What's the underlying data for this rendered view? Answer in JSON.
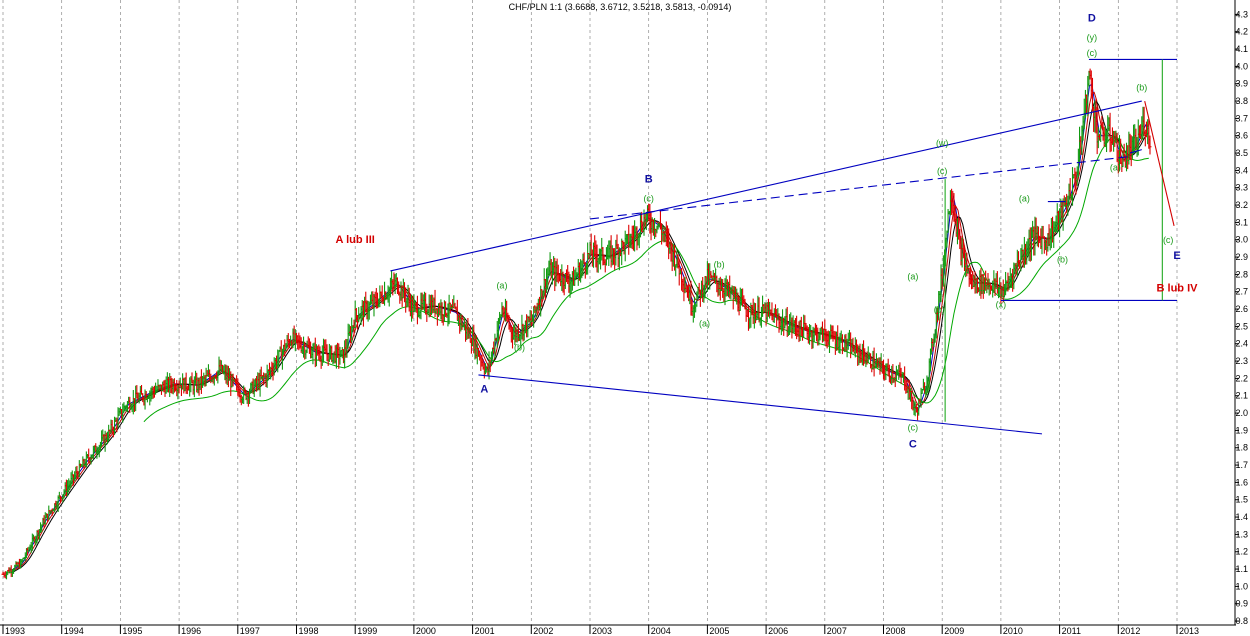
{
  "title": "CHF/PLN 1:1 (3.6688, 3.6712, 3.5218, 3.5813, -0.0914)",
  "chart_data": {
    "type": "ohlc-weekly",
    "instrument": "CHF/PLN",
    "title": "CHF/PLN 1:1 (3.6688, 3.6712, 3.5218, 3.5813, -0.0914)",
    "last_bar": {
      "open": 3.6688,
      "high": 3.6712,
      "low": 3.5218,
      "close": 3.5813,
      "change": -0.0914
    },
    "x_ticks": [
      "1993",
      "1994",
      "1995",
      "1996",
      "1997",
      "1998",
      "1999",
      "2000",
      "2001",
      "2002",
      "2003",
      "2004",
      "2005",
      "2006",
      "2007",
      "2008",
      "2009",
      "2010",
      "2011",
      "2012",
      "2013"
    ],
    "y_ticks": [
      "0.8",
      "0.9",
      "1.0",
      "1.1",
      "1.2",
      "1.3",
      "1.4",
      "1.5",
      "1.6",
      "1.7",
      "1.8",
      "1.9",
      "2.0",
      "2.1",
      "2.2",
      "2.3",
      "2.4",
      "2.5",
      "2.6",
      "2.7",
      "2.8",
      "2.9",
      "3.0",
      "3.1",
      "3.2",
      "3.3",
      "3.4",
      "3.5",
      "3.6",
      "3.7",
      "3.8",
      "3.9",
      "4.0",
      "4.1",
      "4.2",
      "4.3"
    ],
    "xlim": [
      1993.0,
      2013.3
    ],
    "ylim": [
      0.76,
      4.36
    ],
    "price_path": [
      [
        1993.0,
        1.07
      ],
      [
        1993.3,
        1.13
      ],
      [
        1993.7,
        1.38
      ],
      [
        1994.0,
        1.53
      ],
      [
        1994.4,
        1.72
      ],
      [
        1994.8,
        1.88
      ],
      [
        1995.1,
        2.05
      ],
      [
        1995.5,
        2.12
      ],
      [
        1995.9,
        2.17
      ],
      [
        1996.3,
        2.16
      ],
      [
        1996.7,
        2.25
      ],
      [
        1997.1,
        2.1
      ],
      [
        1997.5,
        2.22
      ],
      [
        1997.9,
        2.43
      ],
      [
        1998.3,
        2.35
      ],
      [
        1998.8,
        2.33
      ],
      [
        1999.0,
        2.56
      ],
      [
        1999.3,
        2.63
      ],
      [
        1999.7,
        2.75
      ],
      [
        2000.0,
        2.6
      ],
      [
        2000.3,
        2.62
      ],
      [
        2000.7,
        2.58
      ],
      [
        2001.0,
        2.42
      ],
      [
        2001.25,
        2.23
      ],
      [
        2001.5,
        2.6
      ],
      [
        2001.7,
        2.45
      ],
      [
        2002.0,
        2.53
      ],
      [
        2002.3,
        2.82
      ],
      [
        2002.7,
        2.76
      ],
      [
        2003.0,
        2.92
      ],
      [
        2003.3,
        2.9
      ],
      [
        2003.7,
        3.0
      ],
      [
        2003.95,
        3.13
      ],
      [
        2004.2,
        3.07
      ],
      [
        2004.5,
        2.85
      ],
      [
        2004.75,
        2.62
      ],
      [
        2005.0,
        2.78
      ],
      [
        2005.3,
        2.72
      ],
      [
        2005.7,
        2.58
      ],
      [
        2006.0,
        2.58
      ],
      [
        2006.3,
        2.52
      ],
      [
        2006.7,
        2.47
      ],
      [
        2007.0,
        2.45
      ],
      [
        2007.3,
        2.41
      ],
      [
        2007.7,
        2.32
      ],
      [
        2008.0,
        2.25
      ],
      [
        2008.35,
        2.2
      ],
      [
        2008.55,
        2.0
      ],
      [
        2008.75,
        2.2
      ],
      [
        2009.0,
        2.8
      ],
      [
        2009.15,
        3.3
      ],
      [
        2009.3,
        2.95
      ],
      [
        2009.5,
        2.75
      ],
      [
        2009.8,
        2.75
      ],
      [
        2010.05,
        2.7
      ],
      [
        2010.3,
        2.88
      ],
      [
        2010.55,
        3.02
      ],
      [
        2010.8,
        3.0
      ],
      [
        2011.1,
        3.2
      ],
      [
        2011.3,
        3.4
      ],
      [
        2011.5,
        3.95
      ],
      [
        2011.65,
        3.6
      ],
      [
        2011.9,
        3.6
      ],
      [
        2012.05,
        3.45
      ],
      [
        2012.3,
        3.55
      ],
      [
        2012.45,
        3.68
      ],
      [
        2012.55,
        3.58
      ]
    ],
    "moving_averages": [
      {
        "color": "#0000c0",
        "lag": 0.06
      },
      {
        "color": "#c00000",
        "lag": 0.14
      },
      {
        "color": "#000000",
        "lag": 0.22
      },
      {
        "color": "#00a800",
        "lag": 0.55
      }
    ],
    "trendlines": [
      {
        "color": "#0000c0",
        "style": "solid",
        "points": [
          [
            1999.6,
            2.82
          ],
          [
            2012.4,
            3.8
          ]
        ]
      },
      {
        "color": "#0000c0",
        "style": "dashed",
        "points": [
          [
            2003.0,
            3.12
          ],
          [
            2012.2,
            3.48
          ]
        ]
      },
      {
        "color": "#0000c0",
        "style": "solid",
        "points": [
          [
            2001.1,
            2.22
          ],
          [
            2010.7,
            1.88
          ]
        ]
      },
      {
        "color": "#0000c0",
        "style": "solid",
        "points": [
          [
            2011.5,
            4.04
          ],
          [
            2013.0,
            4.04
          ]
        ]
      },
      {
        "color": "#0000c0",
        "style": "solid",
        "points": [
          [
            2010.0,
            2.65
          ],
          [
            2013.0,
            2.65
          ]
        ]
      },
      {
        "color": "#0000c0",
        "style": "solid",
        "points": [
          [
            2012.2,
            3.5
          ],
          [
            2012.4,
            3.52
          ]
        ]
      },
      {
        "color": "#0000c0",
        "style": "solid",
        "points": [
          [
            2010.8,
            3.22
          ],
          [
            2011.1,
            3.22
          ]
        ]
      },
      {
        "color": "#22aa22",
        "style": "solid",
        "points": [
          [
            2009.05,
            3.35
          ],
          [
            2009.05,
            1.95
          ]
        ]
      },
      {
        "color": "#22aa22",
        "style": "solid",
        "points": [
          [
            2012.75,
            4.04
          ],
          [
            2012.75,
            2.65
          ]
        ]
      },
      {
        "color": "#d40000",
        "style": "solid",
        "points": [
          [
            2012.45,
            3.8
          ],
          [
            2012.95,
            3.08
          ]
        ]
      }
    ],
    "annotations": [
      {
        "text": "A lub III",
        "x": 1999.0,
        "y": 2.98,
        "color": "red"
      },
      {
        "text": "B",
        "x": 2004.0,
        "y": 3.33,
        "color": "blue"
      },
      {
        "text": "(c)",
        "x": 2004.0,
        "y": 3.22,
        "color": "green"
      },
      {
        "text": "A",
        "x": 2001.2,
        "y": 2.12,
        "color": "blue"
      },
      {
        "text": "(a)",
        "x": 2001.5,
        "y": 2.72,
        "color": "green"
      },
      {
        "text": "(b)",
        "x": 2001.8,
        "y": 2.36,
        "color": "green"
      },
      {
        "text": "(b)",
        "x": 2005.2,
        "y": 2.84,
        "color": "green"
      },
      {
        "text": "(a)",
        "x": 2004.95,
        "y": 2.5,
        "color": "green"
      },
      {
        "text": "(c)",
        "x": 2008.5,
        "y": 1.9,
        "color": "green"
      },
      {
        "text": "C",
        "x": 2008.5,
        "y": 1.8,
        "color": "blue"
      },
      {
        "text": "(a)",
        "x": 2008.5,
        "y": 2.77,
        "color": "green"
      },
      {
        "text": "(w)",
        "x": 2009.0,
        "y": 3.54,
        "color": "green"
      },
      {
        "text": "(c)",
        "x": 2009.0,
        "y": 3.38,
        "color": "green"
      },
      {
        "text": "(b)",
        "x": 2008.95,
        "y": 2.58,
        "color": "green"
      },
      {
        "text": "(x)",
        "x": 2010.0,
        "y": 2.61,
        "color": "green"
      },
      {
        "text": "(a)",
        "x": 2010.4,
        "y": 3.22,
        "color": "green"
      },
      {
        "text": "(b)",
        "x": 2011.05,
        "y": 2.87,
        "color": "green"
      },
      {
        "text": "D",
        "x": 2011.55,
        "y": 4.26,
        "color": "blue"
      },
      {
        "text": "(y)",
        "x": 2011.55,
        "y": 4.15,
        "color": "green"
      },
      {
        "text": "(c)",
        "x": 2011.55,
        "y": 4.06,
        "color": "green"
      },
      {
        "text": "(b)",
        "x": 2012.4,
        "y": 3.86,
        "color": "green"
      },
      {
        "text": "(a)",
        "x": 2011.95,
        "y": 3.4,
        "color": "green"
      },
      {
        "text": "(c)",
        "x": 2012.85,
        "y": 2.98,
        "color": "green"
      },
      {
        "text": "E",
        "x": 2013.0,
        "y": 2.89,
        "color": "blue"
      },
      {
        "text": "B lub IV",
        "x": 2013.0,
        "y": 2.7,
        "color": "red"
      }
    ],
    "colors": {
      "up": "#129912",
      "down": "#dd0000",
      "grid": "#8c8c8c",
      "axis": "#000000"
    }
  }
}
